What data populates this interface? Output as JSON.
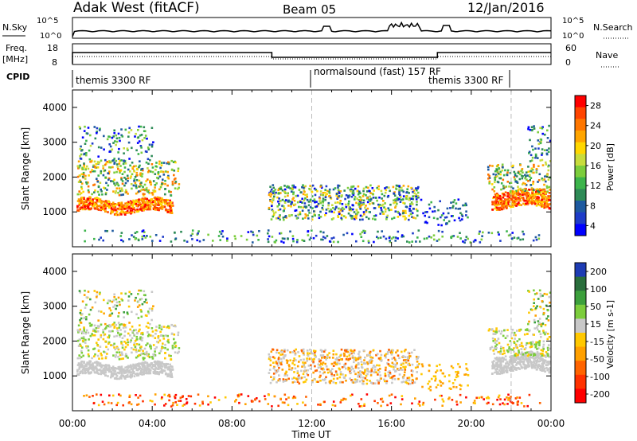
{
  "header": {
    "station": "Adak West (fitACF)",
    "beam": "Beam 05",
    "date": "12/Jan/2016"
  },
  "panels": {
    "nsky": {
      "label": "N.Sky",
      "ticks": [
        "10^5",
        "10^0"
      ],
      "right_ticks": [
        "10^5",
        "10^0"
      ],
      "right_label": "N.Search"
    },
    "freq": {
      "label_line1": "Freq.",
      "label_line2": "[MHz]",
      "ticks": [
        "18",
        "8"
      ],
      "right_ticks": [
        "60",
        "0"
      ],
      "right_label": "Nave"
    },
    "cpid": {
      "label": "CPID",
      "segments": [
        {
          "text": "themis 3300 RF"
        },
        {
          "text": "normalsound (fast) 157 RF"
        },
        {
          "text": "themis 3300 RF"
        }
      ]
    }
  },
  "colorbars": {
    "power": {
      "label": "Power [dB]",
      "ticks": [
        "28",
        "24",
        "20",
        "16",
        "12",
        "8",
        "4"
      ],
      "colors": [
        "#ff0000",
        "#ff4400",
        "#ff7700",
        "#ffa500",
        "#ffd700",
        "#c8dc3c",
        "#7ccd3c",
        "#3cb44b",
        "#2e8b57",
        "#1e5aa0",
        "#1e3cc8",
        "#0000ff"
      ]
    },
    "velocity": {
      "label": "Velocity [m s-1]",
      "ticks": [
        "200",
        "100",
        "50",
        "15",
        "-15",
        "-50",
        "-100",
        "-200"
      ],
      "colors": [
        "#1e3cb4",
        "#2a6e3c",
        "#3ca03c",
        "#7ccd3c",
        "#c8c8c8",
        "#ffc800",
        "#ffa000",
        "#ff6400",
        "#ff3200",
        "#ff0000"
      ]
    }
  },
  "chart_data": [
    {
      "type": "heatmap",
      "title": "Power",
      "xlabel": "Time UT",
      "ylabel": "Slant Range [km]",
      "xlim": [
        "00:00",
        "24:00"
      ],
      "ylim": [
        0,
        4500
      ],
      "x_ticks": [
        "00:00",
        "04:00",
        "08:00",
        "12:00",
        "16:00",
        "20:00",
        "00:00"
      ],
      "y_ticks": [
        "1000",
        "2000",
        "3000",
        "4000"
      ],
      "colorbar": "Power [dB]"
    },
    {
      "type": "heatmap",
      "title": "Velocity",
      "xlabel": "Time UT",
      "ylabel": "Slant Range [km]",
      "xlim": [
        "00:00",
        "24:00"
      ],
      "ylim": [
        0,
        4500
      ],
      "x_ticks": [
        "00:00",
        "04:00",
        "08:00",
        "12:00",
        "16:00",
        "20:00",
        "00:00"
      ],
      "y_ticks": [
        "1000",
        "2000",
        "3000",
        "4000"
      ],
      "colorbar": "Velocity [m s-1]"
    }
  ]
}
